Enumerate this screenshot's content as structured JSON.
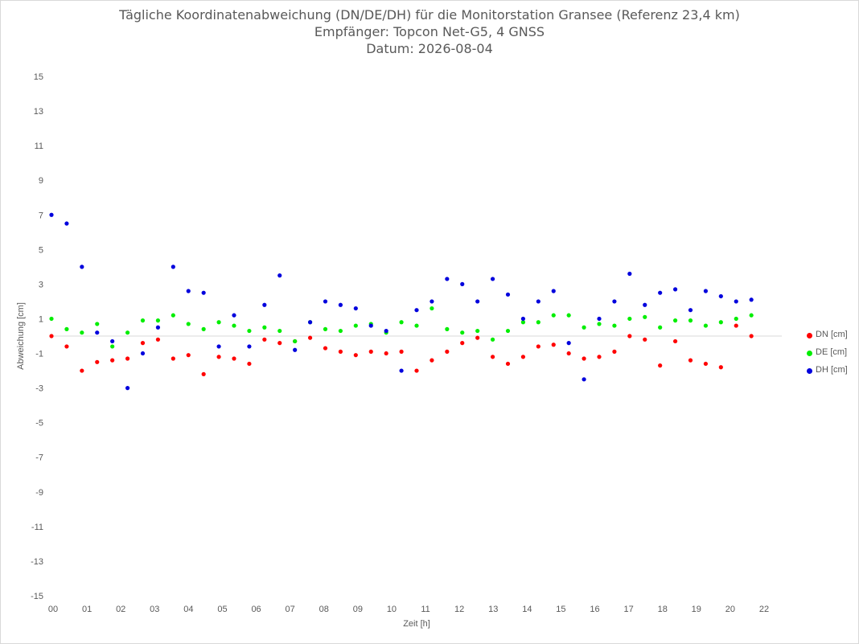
{
  "chart_data": {
    "type": "scatter",
    "title": "Tägliche Koordinatenabweichung (DN/DE/DH) für die Monitorstation Gransee (Referenz 23,4 km)",
    "subtitle": "Empfänger: Topcon Net-G5, 4 GNSS",
    "date_line": "Datum: 2026-08-04",
    "xlabel": "Zeit [h]",
    "ylabel": "Abweichung [cm]",
    "xlim": [
      0,
      24
    ],
    "ylim": [
      -15,
      15
    ],
    "y_ticks": [
      "15",
      "13",
      "11",
      "9",
      "7",
      "5",
      "3",
      "1",
      "-1",
      "-3",
      "-5",
      "-7",
      "-9",
      "-11",
      "-13",
      "-15"
    ],
    "x_ticks": [
      "00",
      "01",
      "02",
      "03",
      "04",
      "05",
      "06",
      "07",
      "08",
      "09",
      "10",
      "11",
      "12",
      "13",
      "14",
      "15",
      "16",
      "17",
      "18",
      "19",
      "20",
      "22"
    ],
    "grid": "horizontal-zero-line",
    "legend": "right",
    "series": [
      {
        "name": "DN [cm]",
        "color": "#ff0000",
        "x": [
          0.0,
          0.5,
          1.0,
          1.5,
          2.0,
          2.5,
          3.0,
          3.5,
          4.0,
          4.5,
          5.0,
          5.5,
          6.0,
          6.5,
          7.0,
          7.5,
          8.0,
          8.5,
          9.0,
          9.5,
          10.0,
          10.5,
          11.0,
          11.5,
          12.0,
          12.5,
          13.0,
          13.5,
          14.0,
          14.5,
          15.0,
          15.5,
          16.0,
          16.5,
          17.0,
          17.5,
          18.0,
          18.5,
          19.0,
          19.5,
          20.0,
          20.5,
          21.0,
          21.5,
          22.0,
          22.5,
          23.0
        ],
        "y": [
          0.0,
          -0.6,
          -2.0,
          -1.5,
          -1.4,
          -1.3,
          -0.4,
          -0.2,
          -1.3,
          -1.1,
          -2.2,
          -1.2,
          -1.3,
          -1.6,
          -0.2,
          -0.4,
          -0.3,
          -0.1,
          -0.7,
          -0.9,
          -1.1,
          -0.9,
          -1.0,
          -0.9,
          -2.0,
          -1.4,
          -0.9,
          -0.4,
          -0.1,
          -1.2,
          -1.6,
          -1.2,
          -0.6,
          -0.5,
          -1.0,
          -1.3,
          -1.2,
          -0.9,
          0.0,
          -0.2,
          -1.7,
          -0.3,
          -1.4,
          -1.6,
          -1.8,
          0.6,
          0.0
        ]
      },
      {
        "name": "DE [cm]",
        "color": "#00ee00",
        "x": [
          0.0,
          0.5,
          1.0,
          1.5,
          2.0,
          2.5,
          3.0,
          3.5,
          4.0,
          4.5,
          5.0,
          5.5,
          6.0,
          6.5,
          7.0,
          7.5,
          8.0,
          8.5,
          9.0,
          9.5,
          10.0,
          10.5,
          11.0,
          11.5,
          12.0,
          12.5,
          13.0,
          13.5,
          14.0,
          14.5,
          15.0,
          15.5,
          16.0,
          16.5,
          17.0,
          17.5,
          18.0,
          18.5,
          19.0,
          19.5,
          20.0,
          20.5,
          21.0,
          21.5,
          22.0,
          22.5,
          23.0
        ],
        "y": [
          1.0,
          0.4,
          0.2,
          0.7,
          -0.6,
          0.2,
          0.9,
          0.9,
          1.2,
          0.7,
          0.4,
          0.8,
          0.6,
          0.3,
          0.5,
          0.3,
          -0.3,
          0.8,
          0.4,
          0.3,
          0.6,
          0.7,
          0.2,
          0.8,
          0.6,
          1.6,
          0.4,
          0.2,
          0.3,
          -0.2,
          0.3,
          0.8,
          0.8,
          1.2,
          1.2,
          0.5,
          0.7,
          0.6,
          1.0,
          1.1,
          0.5,
          0.9,
          0.9,
          0.6,
          0.8,
          1.0,
          1.2
        ]
      },
      {
        "name": "DH [cm]",
        "color": "#0000dd",
        "x": [
          0.0,
          0.5,
          1.0,
          1.5,
          2.0,
          2.5,
          3.0,
          3.5,
          4.0,
          4.5,
          5.0,
          5.5,
          6.0,
          6.5,
          7.0,
          7.5,
          8.0,
          8.5,
          9.0,
          9.5,
          10.0,
          10.5,
          11.0,
          11.5,
          12.0,
          12.5,
          13.0,
          13.5,
          14.0,
          14.5,
          15.0,
          15.5,
          16.0,
          16.5,
          17.0,
          17.5,
          18.0,
          18.5,
          19.0,
          19.5,
          20.0,
          20.5,
          21.0,
          21.5,
          22.0,
          22.5,
          23.0
        ],
        "y": [
          7.0,
          6.5,
          4.0,
          0.2,
          -0.3,
          -3.0,
          -1.0,
          0.5,
          4.0,
          2.6,
          2.5,
          -0.6,
          1.2,
          -0.6,
          1.8,
          3.5,
          -0.8,
          0.8,
          2.0,
          1.8,
          1.6,
          0.6,
          0.3,
          -2.0,
          1.5,
          2.0,
          3.3,
          3.0,
          2.0,
          3.3,
          2.4,
          1.0,
          2.0,
          2.6,
          -0.4,
          -2.5,
          1.0,
          2.0,
          3.6,
          1.8,
          2.5,
          2.7,
          1.5,
          2.6,
          2.3,
          2.0,
          2.1
        ]
      }
    ]
  }
}
